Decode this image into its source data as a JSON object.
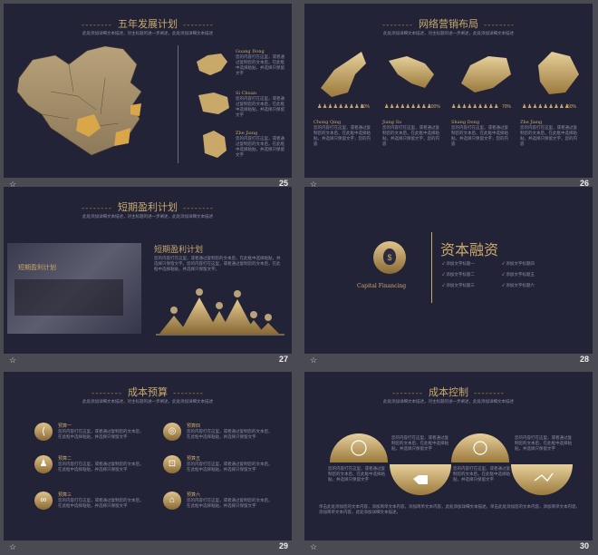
{
  "slides": [
    {
      "num": "25",
      "title": "五年发展计划",
      "sub": "此处添加详细文本描述，对主标题的进一步阐述，此处添加详细文本描述",
      "regions": [
        {
          "name": "Guang Dong",
          "text": "您的内容打在这里，或者通过复制您的文本后，在此框中选择粘贴，并选择只保留文字"
        },
        {
          "name": "Si Chuan",
          "text": "您的内容打在这里，或者通过复制您的文本后，在此框中选择粘贴，并选择只保留文字"
        },
        {
          "name": "Zhe Jiang",
          "text": "您的内容打在这里，或者通过复制您的文本后，在此框中选择粘贴，并选择只保留文字"
        }
      ]
    },
    {
      "num": "26",
      "title": "网络营销布局",
      "sub": "此处添加详细文本描述，对主标题的进一步阐述，此处添加详细文本描述",
      "regions": [
        {
          "name": "Chong Qing",
          "pct": "90%",
          "text": "您的内容打在这里，或者通过复制您的文本后，在此框中选择粘贴，并选择只保留文字，您的内容"
        },
        {
          "name": "Jiang Su",
          "pct": "100%",
          "text": "您的内容打在这里，或者通过复制您的文本后，在此框中选择粘贴，并选择只保留文字，您的内容"
        },
        {
          "name": "Shang Dong",
          "pct": "70%",
          "text": "您的内容打在这里，或者通过复制您的文本后，在此框中选择粘贴，并选择只保留文字，您的内容"
        },
        {
          "name": "Zhe Jiang",
          "pct": "60%",
          "text": "您的内容打在这里，或者通过复制您的文本后，在此框中选择粘贴，并选择只保留文字，您的内容"
        }
      ]
    },
    {
      "num": "27",
      "title": "短期盈利计划",
      "sub": "此处添加详细文本描述，对主标题的进一步阐述，此处添加详细文本描述",
      "photo_label": "短期盈利计划",
      "heading": "短期盈利计划",
      "text": "您的内容打在这里，或者通过复制您的文本后，在此框中选择粘贴，并选择只保留文字。您的内容打在这里，或者通过复制您的文本后，在此框中选择粘贴，并选择只保留文字。"
    },
    {
      "num": "28",
      "title": "资本融资",
      "caption": "Capital Financing",
      "items": [
        "添加文字标题一",
        "添加文字标题二",
        "添加文字标题三",
        "添加文字标题四",
        "添加文字标题五",
        "添加文字标题六"
      ]
    },
    {
      "num": "29",
      "title": "成本预算",
      "sub": "此处添加详细文本描述，对主标题的进一步阐述，此处添加详细文本描述",
      "items": [
        {
          "label": "预算一",
          "text": "您的内容打在这里，或者通过复制您的文本后，在此框中选择粘贴，并选择只保留文字"
        },
        {
          "label": "预算二",
          "text": "您的内容打在这里，或者通过复制您的文本后，在此框中选择粘贴，并选择只保留文字"
        },
        {
          "label": "预算三",
          "text": "您的内容打在这里，或者通过复制您的文本后，在此框中选择粘贴，并选择只保留文字"
        },
        {
          "label": "预算四",
          "text": "您的内容打在这里，或者通过复制您的文本后，在此框中选择粘贴，并选择只保留文字"
        },
        {
          "label": "预算五",
          "text": "您的内容打在这里，或者通过复制您的文本后，在此框中选择粘贴，并选择只保留文字"
        },
        {
          "label": "预算六",
          "text": "您的内容打在这里，或者通过复制您的文本后，在此框中选择粘贴，并选择只保留文字"
        }
      ]
    },
    {
      "num": "30",
      "title": "成本控制",
      "sub": "此处添加详细文本描述，对主标题的进一步阐述，此处添加详细文本描述",
      "blurb": "您的内容打在这里，或者通过复制您的文本后，在此框中选择粘贴，并选择只保留文字",
      "footer": "单击此处添加您的文本内容，添加简单文本内容，添加简单文本内容，此处添加详细文本描述。单击此处添加您的文本内容，添加简单文本内容，添加简单文本内容，此处添加详细文本描述。"
    }
  ]
}
